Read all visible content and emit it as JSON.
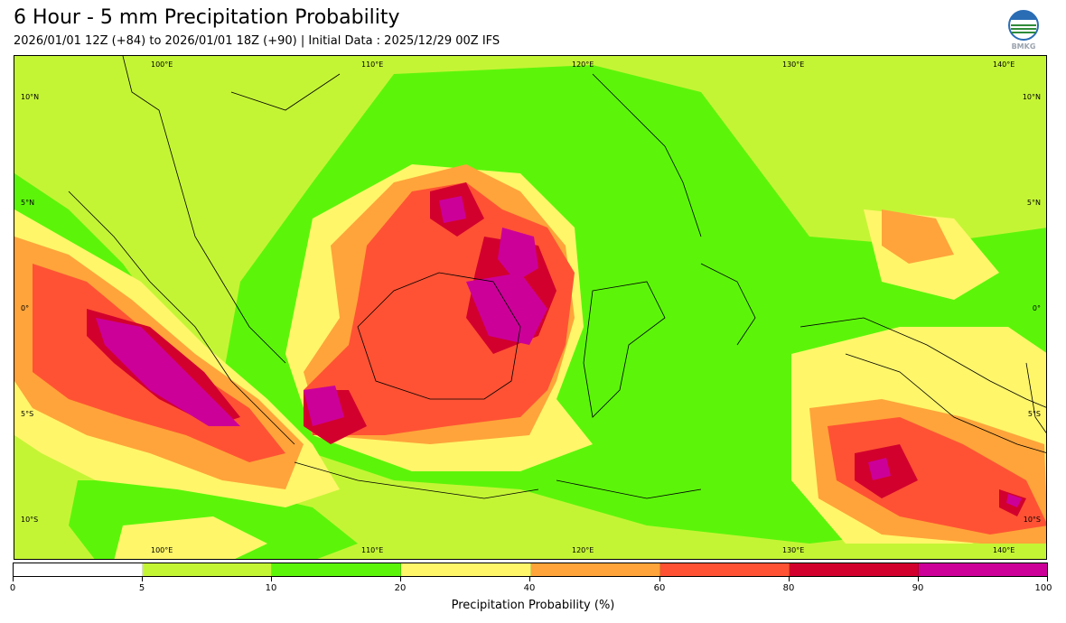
{
  "header": {
    "title": "6 Hour - 5 mm Precipitation Probability",
    "subtitle": "2026/01/01 12Z (+84) to 2026/01/01 18Z (+90) | Initial Data : 2025/12/29 00Z IFS"
  },
  "logo": {
    "text": "BMKG"
  },
  "map": {
    "lon_labels_top": [
      "100°E",
      "110°E",
      "120°E",
      "130°E",
      "140°E"
    ],
    "lon_labels_bottom": [
      "100°E",
      "110°E",
      "120°E",
      "130°E",
      "140°E"
    ],
    "lat_labels_left": [
      "10°N",
      "5°N",
      "0°",
      "5°S",
      "10°S"
    ],
    "lat_labels_right": [
      "10°N",
      "5°N",
      "0°",
      "5°S",
      "10°S"
    ]
  },
  "colorbar": {
    "title": "Precipitation Probability (%)",
    "ticks": [
      "0",
      "5",
      "10",
      "20",
      "40",
      "60",
      "80",
      "90",
      "100"
    ],
    "colors": [
      "#ffffff",
      "#c4f535",
      "#5cf50a",
      "#fff66a",
      "#ffa43a",
      "#ff5234",
      "#d2002d",
      "#cc0099"
    ]
  },
  "palette": {
    "c5": "#c4f535",
    "c10": "#5cf50a",
    "c20": "#fff66a",
    "c40": "#ffa43a",
    "c60": "#ff5234",
    "c80": "#d2002d",
    "c90": "#cc0099"
  }
}
